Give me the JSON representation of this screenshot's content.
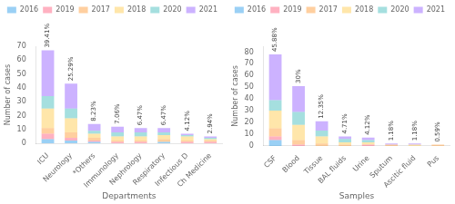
{
  "chart_data": [
    {
      "type": "bar",
      "stacked": true,
      "grid": false,
      "legend": "top",
      "xlabel": "Departments",
      "ylabel": "Number of cases",
      "categories": [
        "ICU",
        "Neurology",
        "*Others",
        "Immunology",
        "Nephrology",
        "Respiratory",
        "Infectious D",
        "Ch Medicine"
      ],
      "series": [
        {
          "name": "2016",
          "values": [
            3,
            2,
            1,
            0,
            0,
            1,
            0,
            0
          ]
        },
        {
          "name": "2019",
          "values": [
            4,
            2,
            1,
            1,
            1,
            0,
            1,
            1
          ]
        },
        {
          "name": "2017",
          "values": [
            4,
            4,
            2,
            1,
            1,
            2,
            1,
            1
          ]
        },
        {
          "name": "2018",
          "values": [
            14,
            10,
            3,
            3,
            3,
            3,
            3,
            1
          ]
        },
        {
          "name": "2020",
          "values": [
            9,
            7,
            2,
            3,
            3,
            2,
            1,
            1
          ]
        },
        {
          "name": "2021",
          "values": [
            33,
            18,
            5,
            4,
            3,
            3,
            1,
            1
          ]
        }
      ],
      "annotations": [
        "39.41%",
        "25.29%",
        "8.23%",
        "7.06%",
        "6.47%",
        "6.47%",
        "4.12%",
        "2.94%"
      ],
      "ylim": [
        0,
        70
      ],
      "yticks": [
        0,
        10,
        20,
        30,
        40,
        50,
        60,
        70
      ]
    },
    {
      "type": "bar",
      "stacked": true,
      "grid": false,
      "legend": "top",
      "xlabel": "Samples",
      "ylabel": "Number of cases",
      "categories": [
        "CSF",
        "Blood",
        "Tissue",
        "BAL fluids",
        "Urine",
        "Sputum",
        "Ascitic fluid",
        "Pus"
      ],
      "series": [
        {
          "name": "2016",
          "values": [
            5,
            0,
            0,
            0,
            0,
            0,
            0,
            0
          ]
        },
        {
          "name": "2019",
          "values": [
            3,
            1,
            0,
            0,
            1,
            0,
            0,
            0
          ]
        },
        {
          "name": "2017",
          "values": [
            7,
            4,
            2,
            1,
            0,
            1,
            0,
            1
          ]
        },
        {
          "name": "2018",
          "values": [
            15,
            13,
            6,
            2,
            2,
            0,
            1,
            0
          ]
        },
        {
          "name": "2020",
          "values": [
            9,
            11,
            5,
            3,
            2,
            0,
            0,
            0
          ]
        },
        {
          "name": "2021",
          "values": [
            39,
            22,
            8,
            2,
            2,
            1,
            1,
            0
          ]
        }
      ],
      "annotations": [
        "45.88%",
        "30%",
        "12.35%",
        "4.71%",
        "4.12%",
        "1.18%",
        "1.18%",
        "0.59%"
      ],
      "ylim": [
        0,
        85
      ],
      "yticks": [
        0,
        10,
        20,
        30,
        40,
        50,
        60,
        70,
        80
      ]
    }
  ]
}
